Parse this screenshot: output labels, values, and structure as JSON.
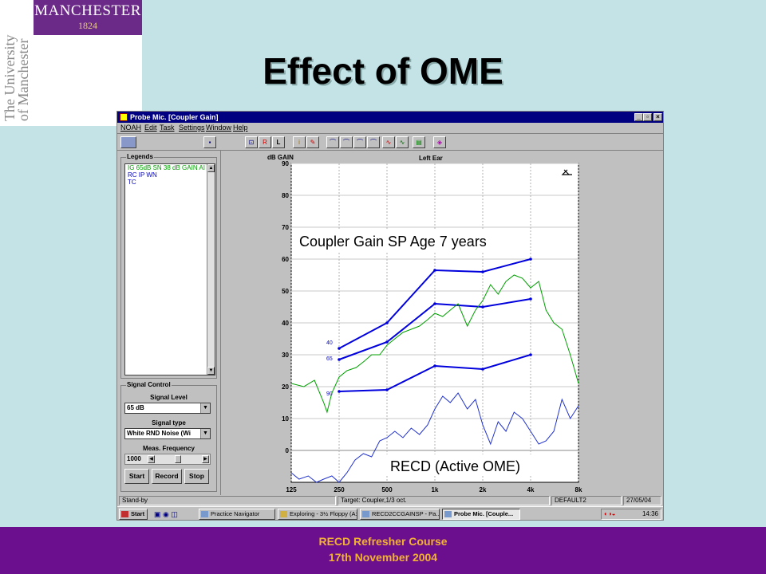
{
  "logo": {
    "name": "MANCHESTER",
    "year": "1824",
    "vertical_line1": "The University",
    "vertical_line2": "of Manchester"
  },
  "slide": {
    "title": "Effect of OME"
  },
  "window": {
    "title": "Probe Mic. [Coupler Gain]",
    "controls": [
      "_",
      "▫",
      "×"
    ],
    "menu": [
      "NOAH",
      "Edit",
      "Task",
      "Settings",
      "Window",
      "Help"
    ],
    "toolbar_icons": [
      "noah-icon",
      "save-icon",
      "chart-select-icon",
      "reference-icon",
      "left-ear-icon",
      "info-icon",
      "settings-icon",
      "curve-1-icon",
      "curve-2-icon",
      "curve-3-icon",
      "curve-4-icon",
      "noise-icon",
      "recd-icon",
      "book-icon"
    ],
    "toolbar_text": {
      "left_ear": "L"
    }
  },
  "legends": {
    "title": "Legends",
    "items": [
      {
        "text": "IG  65dB SN  38 dB GAIN AI",
        "color": "#00a000"
      },
      {
        "text": "RC IP WN",
        "color": "#0000c0"
      },
      {
        "text": "TC",
        "color": "#0000c0"
      }
    ]
  },
  "signal_control": {
    "title": "Signal Control",
    "level_label": "Signal Level",
    "level_value": "65 dB",
    "type_label": "Signal type",
    "type_value": "White RND Noise (Wi",
    "freq_label": "Meas. Frequency",
    "freq_value": "1000",
    "buttons": {
      "start": "Start",
      "record": "Record",
      "stop": "Stop"
    }
  },
  "chart_data": {
    "type": "line",
    "title": "Left Ear",
    "ylabel": "dB GAIN",
    "ylim": [
      -10,
      90
    ],
    "yticks": [
      90,
      80,
      70,
      60,
      50,
      40,
      30,
      20,
      10,
      0
    ],
    "xscale": "log",
    "xticks": [
      "125",
      "250",
      "500",
      "1k",
      "2k",
      "4k",
      "8k"
    ],
    "annotations": {
      "main": "Coupler Gain SP Age 7 years",
      "recd": "RECD (Active OME)"
    },
    "series": [
      {
        "name": "40",
        "color": "#0000dd",
        "x": [
          250,
          500,
          1000,
          2000,
          4000
        ],
        "y": [
          32,
          40,
          56.5,
          56,
          60
        ]
      },
      {
        "name": "65",
        "color": "#0000dd",
        "x": [
          250,
          500,
          1000,
          2000,
          4000
        ],
        "y": [
          28.5,
          34,
          46,
          45,
          47.5
        ]
      },
      {
        "name": "90",
        "color": "#0000dd",
        "x": [
          250,
          500,
          1000,
          2000,
          4000
        ],
        "y": [
          18.5,
          19,
          26.5,
          25.5,
          30
        ]
      },
      {
        "name": "IG 65dB SN 38 dB GAIN AI",
        "color": "#00a000",
        "x": [
          125,
          150,
          175,
          200,
          210,
          225,
          250,
          280,
          320,
          360,
          400,
          450,
          500,
          560,
          630,
          710,
          800,
          900,
          1000,
          1120,
          1250,
          1400,
          1600,
          1800,
          2000,
          2240,
          2500,
          2800,
          3150,
          3550,
          4000,
          4500,
          5000,
          5600,
          6300,
          7100,
          8000
        ],
        "y": [
          21,
          20,
          22,
          15,
          12,
          18,
          23,
          25,
          26,
          28,
          30,
          30,
          33,
          35,
          37,
          38,
          39,
          41,
          43,
          42,
          44,
          46,
          39,
          44,
          47,
          52,
          49,
          53,
          55,
          54,
          51,
          53,
          44,
          40,
          38,
          30,
          21
        ]
      },
      {
        "name": "RECD",
        "color": "#2233cc",
        "x": [
          125,
          140,
          160,
          180,
          200,
          225,
          250,
          280,
          315,
          355,
          400,
          450,
          500,
          560,
          630,
          710,
          800,
          900,
          1000,
          1120,
          1250,
          1400,
          1600,
          1800,
          2000,
          2240,
          2500,
          2800,
          3150,
          3550,
          4000,
          4500,
          5000,
          5600,
          6300,
          7100,
          8000
        ],
        "y": [
          -7,
          -9,
          -8,
          -10,
          -9,
          -8,
          -10,
          -7,
          -3,
          -1,
          -2,
          3,
          4,
          6,
          4,
          7,
          5,
          8,
          13,
          17,
          15,
          18,
          13,
          16,
          8,
          2,
          9,
          6,
          12,
          10,
          6,
          2,
          3,
          6,
          16,
          10,
          14
        ]
      }
    ]
  },
  "status": {
    "left": "Stand-by",
    "middle": "Target: Coupler,1/3 oct.",
    "right1": "DEFAULT2",
    "right2": "27/05/04"
  },
  "taskbar": {
    "start": "Start",
    "tasks": [
      "Practice Navigator",
      "Exploring - 3½ Floppy (A:)",
      "RECD2CCGAINSP - Pa...",
      "Probe Mic. [Couple..."
    ],
    "clock": "14:36"
  },
  "footer": {
    "line1": "RECD Refresher Course",
    "line2": "17th November 2004"
  }
}
